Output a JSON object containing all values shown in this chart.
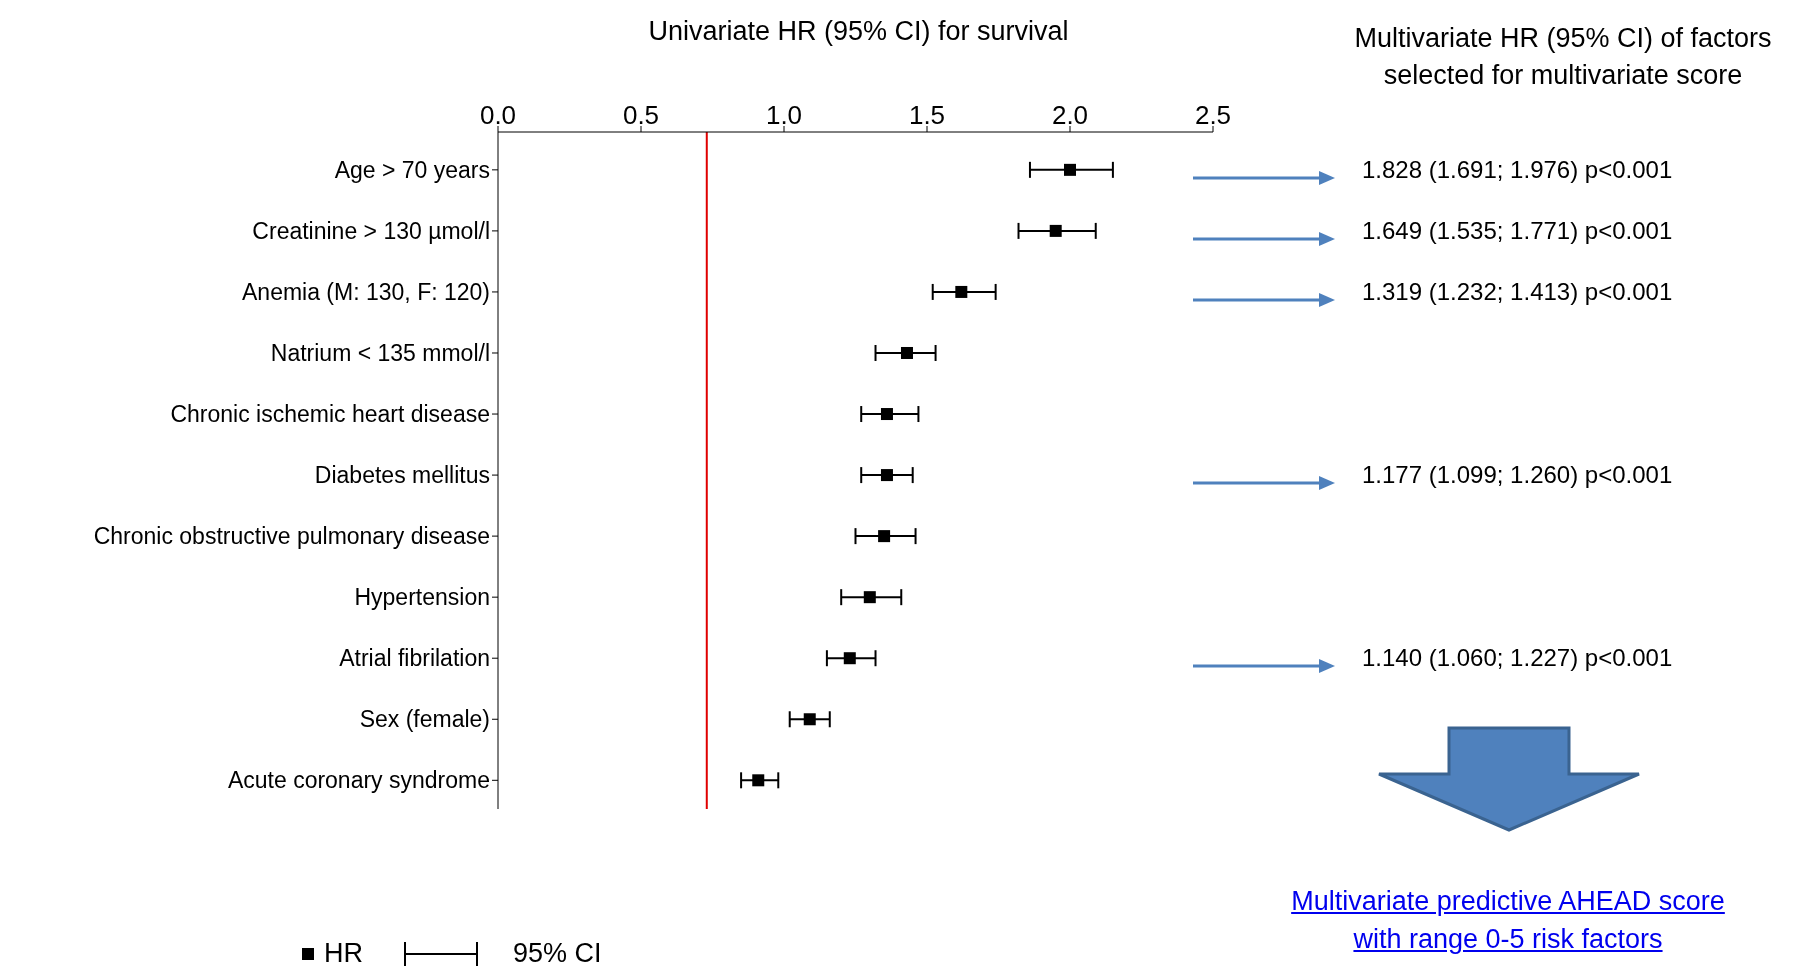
{
  "chart_data": {
    "type": "scatter",
    "orientation": "horizontal",
    "title": "Univariate HR (95% CI) for survival",
    "categories": [
      "Age > 70 years",
      "Creatinine > 130 µmol/l",
      "Anemia (M: 130, F: 120)",
      "Natrium < 135 mmol/l",
      "Chronic ischemic heart disease",
      "Diabetes mellitus",
      "Chronic obstructive pulmonary disease",
      "Hypertension",
      "Atrial fibrilation",
      "Sex (female)",
      "Acute coronary syndrome"
    ],
    "series": [
      {
        "name": "HR",
        "color": "#000000",
        "values": [
          2.0,
          1.95,
          1.62,
          1.43,
          1.36,
          1.36,
          1.35,
          1.3,
          1.23,
          1.09,
          0.91
        ],
        "errors": [
          [
            1.86,
            2.15
          ],
          [
            1.82,
            2.09
          ],
          [
            1.52,
            1.74
          ],
          [
            1.32,
            1.53
          ],
          [
            1.27,
            1.47
          ],
          [
            1.27,
            1.45
          ],
          [
            1.25,
            1.46
          ],
          [
            1.2,
            1.41
          ],
          [
            1.15,
            1.32
          ],
          [
            1.02,
            1.16
          ],
          [
            0.85,
            0.98
          ]
        ]
      }
    ],
    "xlim": [
      0,
      2.5
    ],
    "xticks": [
      {
        "value": 0,
        "label": "0.0"
      },
      {
        "value": 0.5,
        "label": "0.5"
      },
      {
        "value": 1,
        "label": "1.0"
      },
      {
        "value": 1.5,
        "label": "1.5"
      },
      {
        "value": 2,
        "label": "2.0"
      },
      {
        "value": 2.5,
        "label": "2.5"
      }
    ],
    "ref_lines": [
      {
        "axis": "x",
        "value": 0.73,
        "color": "#e00000"
      }
    ],
    "marker": "square",
    "legend": "bottom left",
    "annotations": [
      "Multivariate HR (95% CI) of factors selected for multivariate score",
      "Multivariate predictive AHEAD score with range 0-5 risk factors",
      "95% CI"
    ],
    "y2_categories": [
      "1.828 (1.691; 1.976) p<0.001",
      "1.649 (1.535; 1.771) p<0.001",
      "1.319 (1.232; 1.413) p<0.001",
      null,
      null,
      "1.177 (1.099; 1.260) p<0.001",
      null,
      null,
      "1.140 (1.060; 1.227) p<0.001",
      null,
      null
    ]
  }
}
